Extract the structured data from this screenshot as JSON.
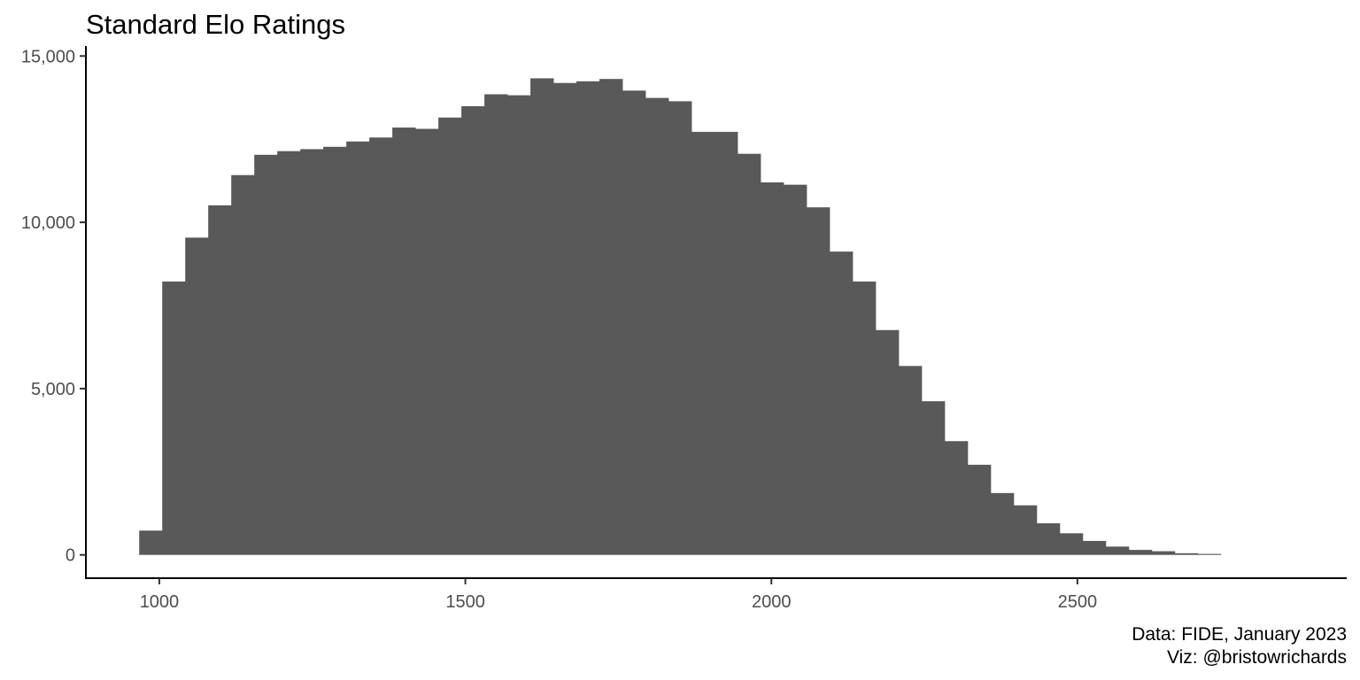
{
  "chart_data": {
    "type": "bar",
    "title": "Standard Elo Ratings",
    "xlabel": "",
    "ylabel": "",
    "bar_color": "#595959",
    "axis_color": "#000000",
    "tick_label_color": "#4d4d4d",
    "background": "#ffffff",
    "grid": false,
    "xlim": [
      880,
      2940
    ],
    "ylim": [
      -700,
      15300
    ],
    "x_ticks": [
      {
        "value": 1000,
        "label": "1000"
      },
      {
        "value": 1500,
        "label": "1500"
      },
      {
        "value": 2000,
        "label": "2000"
      },
      {
        "value": 2500,
        "label": "2500"
      }
    ],
    "y_ticks": [
      {
        "value": 0,
        "label": "0"
      },
      {
        "value": 5000,
        "label": "5,000"
      },
      {
        "value": 10000,
        "label": "10,000"
      },
      {
        "value": 15000,
        "label": "15,000"
      }
    ],
    "bin_width": 37.6,
    "bin_starts": [
      967.1,
      1004.7,
      1042.3,
      1079.9,
      1117.5,
      1155.1,
      1192.7,
      1230.3,
      1267.9,
      1305.5,
      1343.1,
      1380.7,
      1418.3,
      1455.9,
      1493.5,
      1531.1,
      1568.7,
      1606.3,
      1643.9,
      1681.5,
      1719.1,
      1756.7,
      1794.3,
      1831.9,
      1869.5,
      1907.1,
      1944.7,
      1982.3,
      2019.9,
      2057.5,
      2095.1,
      2132.7,
      2170.3,
      2207.9,
      2245.5,
      2283.1,
      2320.7,
      2358.3,
      2395.9,
      2433.5,
      2471.1,
      2508.7,
      2546.3,
      2583.9,
      2621.5,
      2659.1,
      2696.7
    ],
    "counts": [
      730,
      8220,
      9540,
      10510,
      11420,
      12030,
      12140,
      12200,
      12270,
      12430,
      12550,
      12850,
      12810,
      13150,
      13490,
      13850,
      13820,
      14330,
      14190,
      14240,
      14310,
      13960,
      13740,
      13640,
      12720,
      12720,
      12060,
      11200,
      11130,
      10450,
      9120,
      8220,
      6760,
      5680,
      4620,
      3420,
      2710,
      1860,
      1490,
      950,
      650,
      420,
      250,
      150,
      110,
      50,
      30
    ]
  },
  "captions": {
    "line1": "Data: FIDE, January 2023",
    "line2": "Viz: @bristowrichards"
  }
}
